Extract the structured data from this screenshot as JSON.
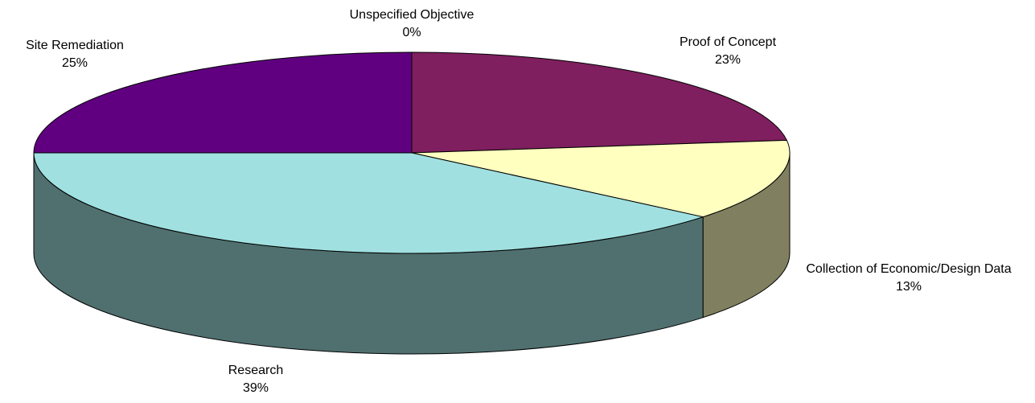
{
  "chart_data": {
    "type": "pie",
    "categories": [
      "Unspecified Objective",
      "Proof of Concept",
      "Collection of Economic/Design Data",
      "Research",
      "Site Remediation"
    ],
    "values": [
      0,
      23,
      13,
      39,
      25
    ],
    "value_labels": [
      "0%",
      "23%",
      "13%",
      "39%",
      "25%"
    ],
    "colors": [
      "#9999ff",
      "#7f1f5f",
      "#ffffc0",
      "#a0e0e0",
      "#600080"
    ]
  }
}
